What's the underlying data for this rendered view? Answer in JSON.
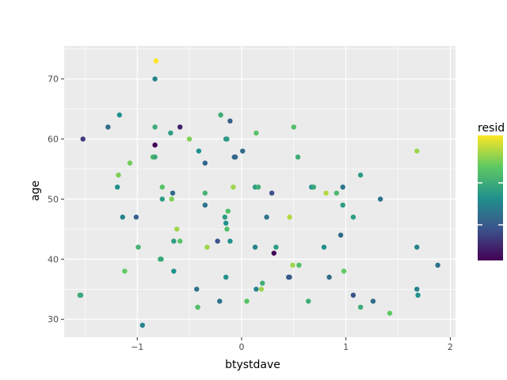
{
  "chart_data": {
    "type": "scatter",
    "title": "",
    "xlabel": "btystdave",
    "ylabel": "age",
    "xlim": [
      -1.7,
      2.05
    ],
    "ylim": [
      27,
      75.5
    ],
    "x_ticks": [
      -1,
      0,
      1,
      2
    ],
    "y_ticks": [
      30,
      40,
      50,
      60,
      70
    ],
    "x_tick_labels": [
      "−1",
      "0",
      "1",
      "2"
    ],
    "y_tick_labels": [
      "30",
      "40",
      "50",
      "60",
      "70"
    ],
    "grid": true,
    "panel_background": "#ebebeb",
    "grid_color": "#ffffff",
    "legend": {
      "title": "resid",
      "placement": "right",
      "colormap": "viridis"
    },
    "points": [
      {
        "x": -0.82,
        "y": 73,
        "c": 1.0
      },
      {
        "x": -0.83,
        "y": 70,
        "c": 0.45
      },
      {
        "x": -1.17,
        "y": 64,
        "c": 0.5
      },
      {
        "x": -0.2,
        "y": 64,
        "c": 0.62
      },
      {
        "x": -0.11,
        "y": 63,
        "c": 0.3
      },
      {
        "x": -1.28,
        "y": 62,
        "c": 0.35
      },
      {
        "x": -0.83,
        "y": 62,
        "c": 0.62
      },
      {
        "x": -0.59,
        "y": 62,
        "c": 0.1
      },
      {
        "x": 0.5,
        "y": 62,
        "c": 0.7
      },
      {
        "x": -0.68,
        "y": 61,
        "c": 0.55
      },
      {
        "x": 0.14,
        "y": 61,
        "c": 0.72
      },
      {
        "x": -1.52,
        "y": 60,
        "c": 0.18
      },
      {
        "x": -0.5,
        "y": 60,
        "c": 0.8
      },
      {
        "x": -0.15,
        "y": 60,
        "c": 0.5
      },
      {
        "x": -0.14,
        "y": 60,
        "c": 0.55
      },
      {
        "x": -0.83,
        "y": 59,
        "c": 0.0
      },
      {
        "x": -0.41,
        "y": 58,
        "c": 0.5
      },
      {
        "x": 0.01,
        "y": 58,
        "c": 0.35
      },
      {
        "x": 1.68,
        "y": 58,
        "c": 0.85
      },
      {
        "x": -0.85,
        "y": 57,
        "c": 0.7
      },
      {
        "x": -0.83,
        "y": 57,
        "c": 0.6
      },
      {
        "x": -0.07,
        "y": 57,
        "c": 0.35
      },
      {
        "x": -0.06,
        "y": 57,
        "c": 0.32
      },
      {
        "x": 0.54,
        "y": 57,
        "c": 0.62
      },
      {
        "x": -1.07,
        "y": 56,
        "c": 0.78
      },
      {
        "x": -0.35,
        "y": 56,
        "c": 0.33
      },
      {
        "x": -1.18,
        "y": 54,
        "c": 0.8
      },
      {
        "x": 1.14,
        "y": 54,
        "c": 0.55
      },
      {
        "x": -1.19,
        "y": 52,
        "c": 0.5
      },
      {
        "x": -0.76,
        "y": 52,
        "c": 0.72
      },
      {
        "x": -0.08,
        "y": 52,
        "c": 0.85
      },
      {
        "x": 0.13,
        "y": 52,
        "c": 0.55
      },
      {
        "x": 0.16,
        "y": 52,
        "c": 0.62
      },
      {
        "x": 0.67,
        "y": 52,
        "c": 0.5
      },
      {
        "x": 0.69,
        "y": 52,
        "c": 0.6
      },
      {
        "x": 0.97,
        "y": 52,
        "c": 0.38
      },
      {
        "x": -0.66,
        "y": 51,
        "c": 0.35
      },
      {
        "x": -0.35,
        "y": 51,
        "c": 0.65
      },
      {
        "x": 0.29,
        "y": 51,
        "c": 0.25
      },
      {
        "x": 0.81,
        "y": 51,
        "c": 0.88
      },
      {
        "x": 0.91,
        "y": 51,
        "c": 0.68
      },
      {
        "x": -0.76,
        "y": 50,
        "c": 0.55
      },
      {
        "x": -0.67,
        "y": 50,
        "c": 0.8
      },
      {
        "x": 1.33,
        "y": 50,
        "c": 0.38
      },
      {
        "x": -0.35,
        "y": 49,
        "c": 0.38
      },
      {
        "x": 0.97,
        "y": 49,
        "c": 0.55
      },
      {
        "x": -0.13,
        "y": 48,
        "c": 0.7
      },
      {
        "x": -1.14,
        "y": 47,
        "c": 0.45
      },
      {
        "x": -1.01,
        "y": 47,
        "c": 0.3
      },
      {
        "x": -0.16,
        "y": 47,
        "c": 0.55
      },
      {
        "x": 0.24,
        "y": 47,
        "c": 0.38
      },
      {
        "x": 0.46,
        "y": 47,
        "c": 0.88
      },
      {
        "x": 1.07,
        "y": 47,
        "c": 0.55
      },
      {
        "x": -0.15,
        "y": 46,
        "c": 0.5
      },
      {
        "x": -0.62,
        "y": 45,
        "c": 0.85
      },
      {
        "x": -0.14,
        "y": 45,
        "c": 0.7
      },
      {
        "x": 0.95,
        "y": 44,
        "c": 0.35
      },
      {
        "x": -0.65,
        "y": 43,
        "c": 0.55
      },
      {
        "x": -0.59,
        "y": 43,
        "c": 0.72
      },
      {
        "x": -0.23,
        "y": 43,
        "c": 0.25
      },
      {
        "x": -0.11,
        "y": 43,
        "c": 0.5
      },
      {
        "x": -0.99,
        "y": 42,
        "c": 0.65
      },
      {
        "x": -0.33,
        "y": 42,
        "c": 0.85
      },
      {
        "x": 0.13,
        "y": 42,
        "c": 0.45
      },
      {
        "x": 0.33,
        "y": 42,
        "c": 0.55
      },
      {
        "x": 0.79,
        "y": 42,
        "c": 0.5
      },
      {
        "x": 1.68,
        "y": 42,
        "c": 0.45
      },
      {
        "x": 0.31,
        "y": 41,
        "c": 0.02
      },
      {
        "x": -0.78,
        "y": 40,
        "c": 0.65
      },
      {
        "x": -0.77,
        "y": 40,
        "c": 0.6
      },
      {
        "x": 0.49,
        "y": 39,
        "c": 0.85
      },
      {
        "x": 0.55,
        "y": 39,
        "c": 0.7
      },
      {
        "x": 1.88,
        "y": 39,
        "c": 0.38
      },
      {
        "x": -1.12,
        "y": 38,
        "c": 0.75
      },
      {
        "x": -0.65,
        "y": 38,
        "c": 0.5
      },
      {
        "x": 0.98,
        "y": 38,
        "c": 0.75
      },
      {
        "x": -0.15,
        "y": 37,
        "c": 0.5
      },
      {
        "x": 0.45,
        "y": 37,
        "c": 0.3
      },
      {
        "x": 0.46,
        "y": 37,
        "c": 0.28
      },
      {
        "x": 0.84,
        "y": 37,
        "c": 0.35
      },
      {
        "x": 0.2,
        "y": 36,
        "c": 0.62
      },
      {
        "x": -0.43,
        "y": 35,
        "c": 0.38
      },
      {
        "x": 0.14,
        "y": 35,
        "c": 0.45
      },
      {
        "x": 0.19,
        "y": 35,
        "c": 0.85
      },
      {
        "x": 1.68,
        "y": 35,
        "c": 0.45
      },
      {
        "x": -1.55,
        "y": 34,
        "c": 0.65
      },
      {
        "x": -1.54,
        "y": 34,
        "c": 0.6
      },
      {
        "x": 1.07,
        "y": 34,
        "c": 0.25
      },
      {
        "x": 1.69,
        "y": 34,
        "c": 0.5
      },
      {
        "x": -0.21,
        "y": 33,
        "c": 0.38
      },
      {
        "x": 0.05,
        "y": 33,
        "c": 0.72
      },
      {
        "x": 0.64,
        "y": 33,
        "c": 0.62
      },
      {
        "x": 1.26,
        "y": 33,
        "c": 0.35
      },
      {
        "x": -0.42,
        "y": 32,
        "c": 0.7
      },
      {
        "x": 1.14,
        "y": 32,
        "c": 0.62
      },
      {
        "x": 1.42,
        "y": 31,
        "c": 0.75
      },
      {
        "x": -0.95,
        "y": 29,
        "c": 0.45
      }
    ]
  }
}
